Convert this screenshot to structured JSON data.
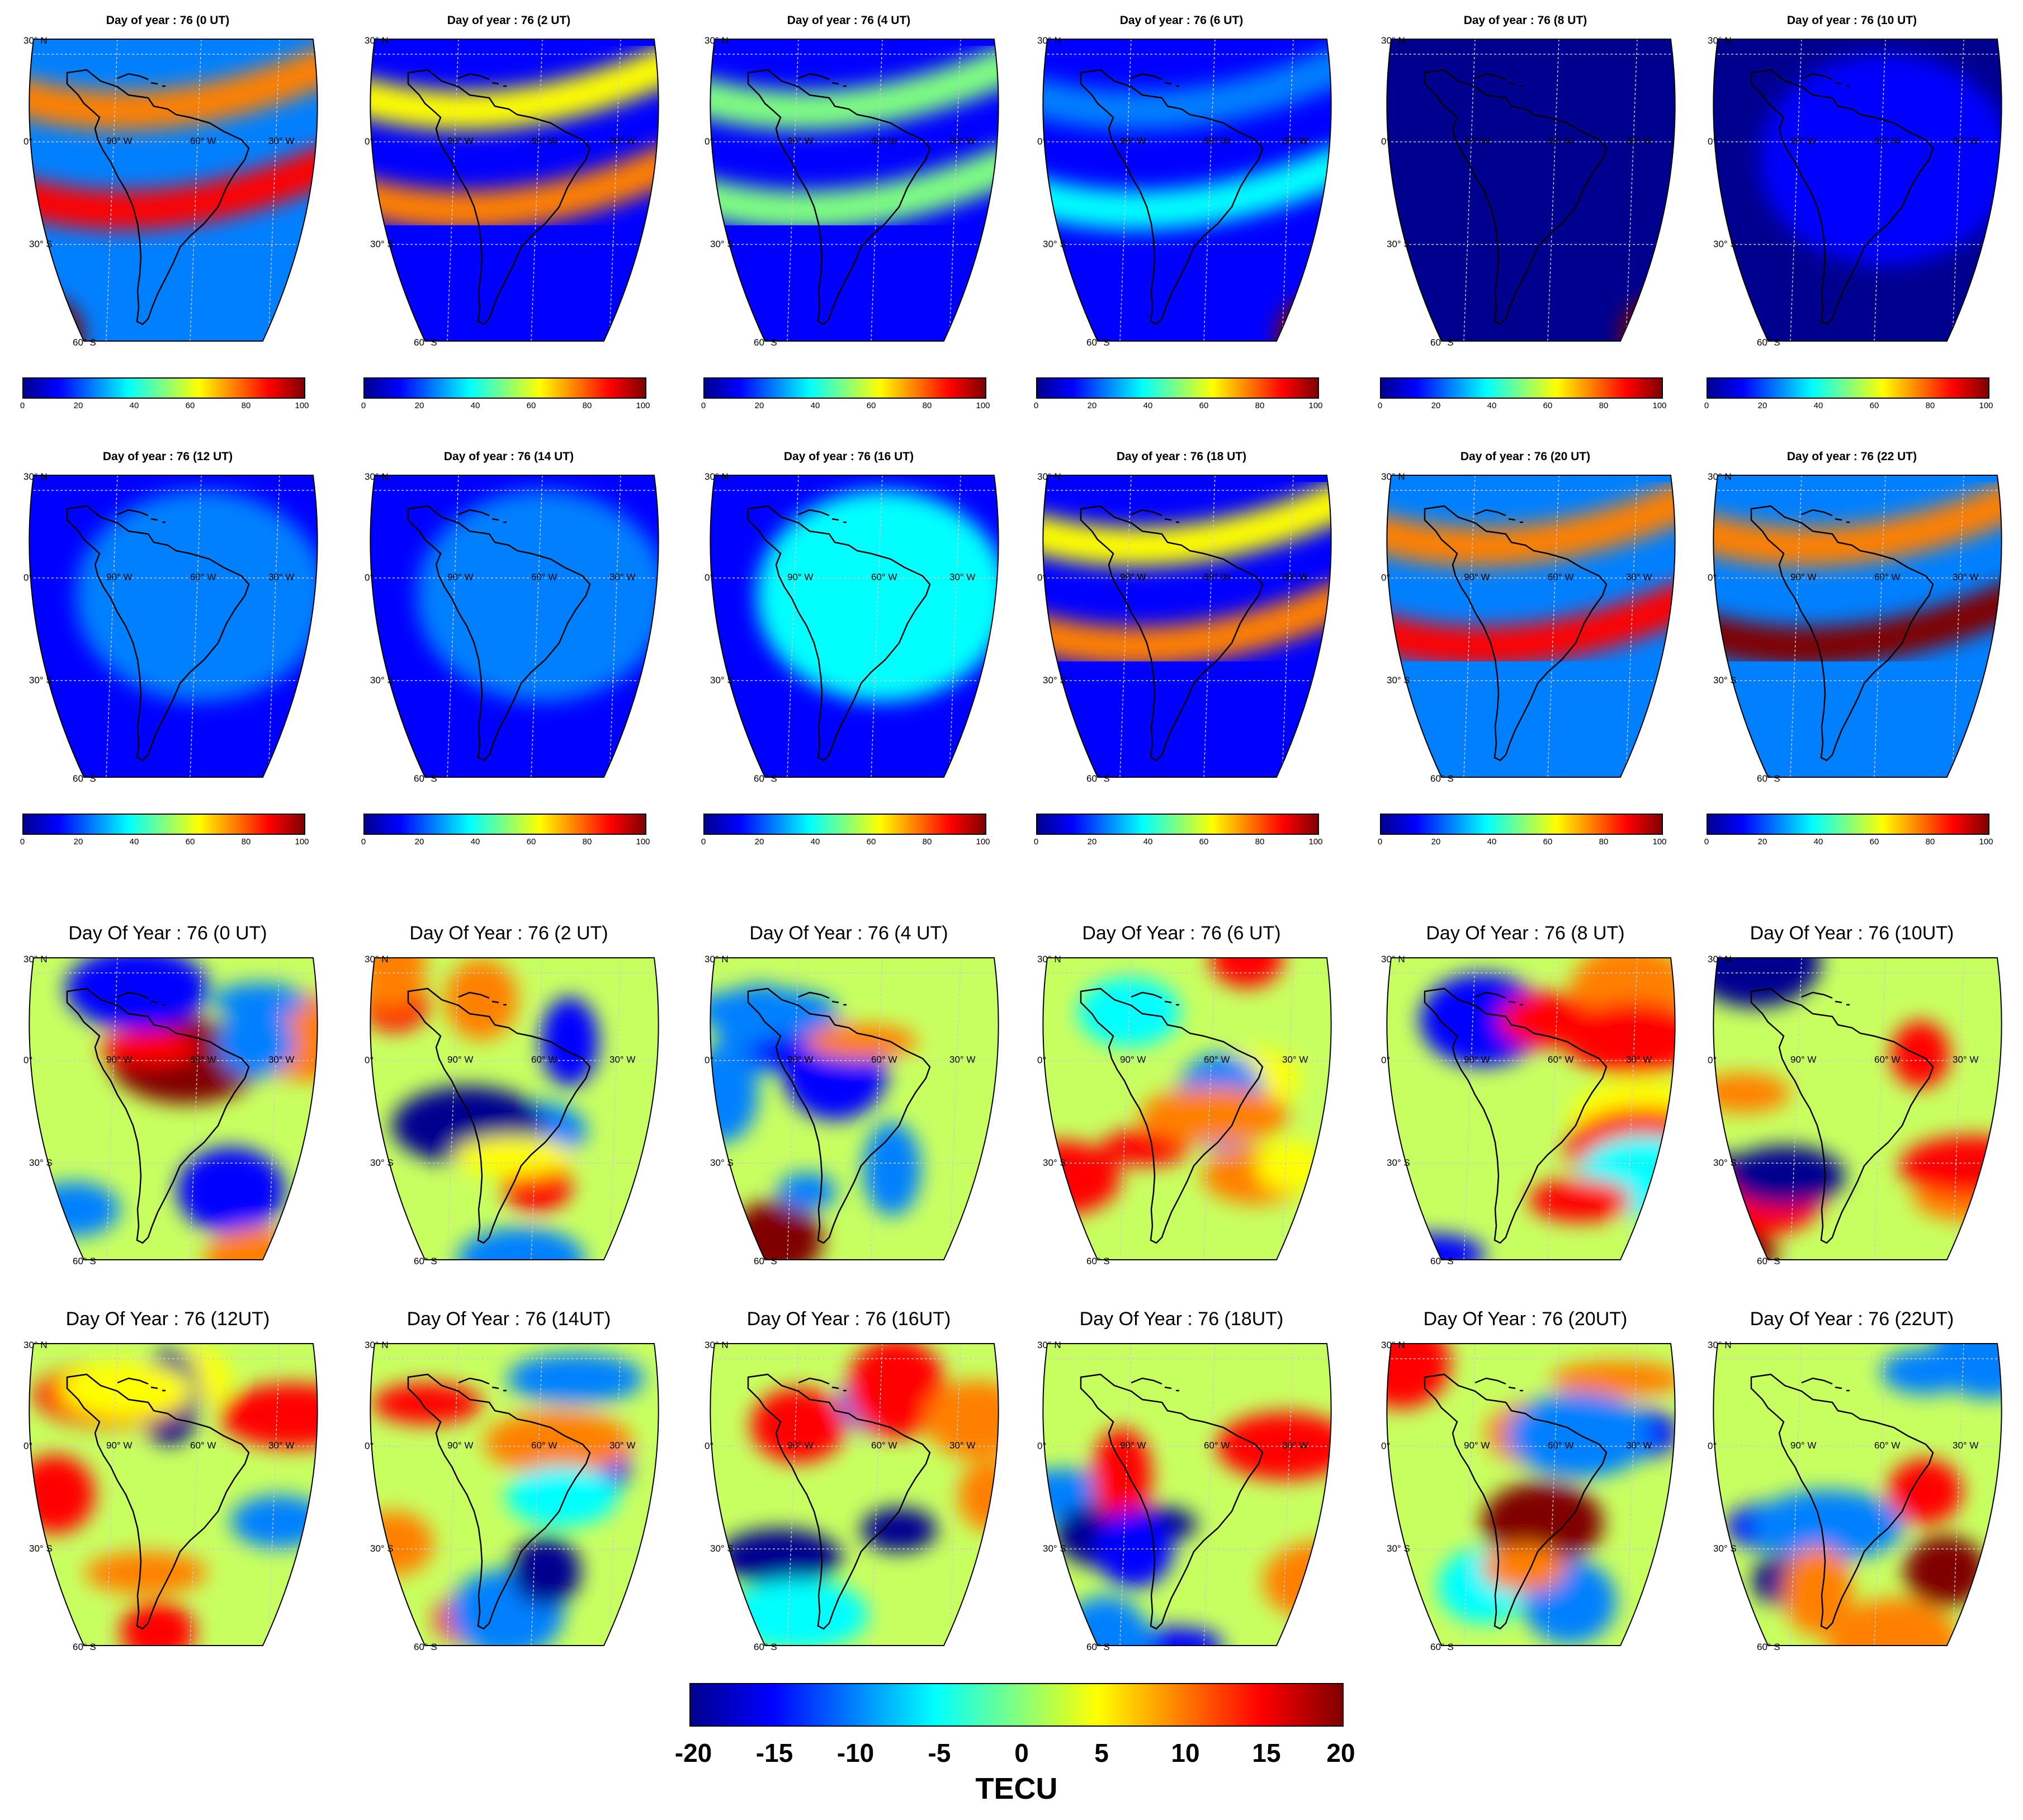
{
  "panels_tec": [
    {
      "title": "Day of year : 76 (0 UT)",
      "pattern": "crest",
      "peak": 0.85,
      "spot": "sw"
    },
    {
      "title": "Day of year : 76 (2 UT)",
      "pattern": "crest",
      "peak": 0.72,
      "spot": ""
    },
    {
      "title": "Day of year : 76 (4 UT)",
      "pattern": "crest",
      "peak": 0.55,
      "spot": ""
    },
    {
      "title": "Day of year : 76 (6 UT)",
      "pattern": "crest",
      "peak": 0.32,
      "spot": "se"
    },
    {
      "title": "Day of year : 76 (8 UT)",
      "pattern": "flat",
      "peak": 0.06,
      "spot": "se"
    },
    {
      "title": "Day of year : 76 (10 UT)",
      "pattern": "flat",
      "peak": 0.12,
      "spot": ""
    },
    {
      "title": "Day of year : 76 (12 UT)",
      "pattern": "flat",
      "peak": 0.25,
      "spot": ""
    },
    {
      "title": "Day of year : 76 (14 UT)",
      "pattern": "flat",
      "peak": 0.38,
      "spot": ""
    },
    {
      "title": "Day of year : 76 (16 UT)",
      "pattern": "flat",
      "peak": 0.58,
      "spot": ""
    },
    {
      "title": "Day of year : 76 (18 UT)",
      "pattern": "crest",
      "peak": 0.72,
      "spot": ""
    },
    {
      "title": "Day of year : 76 (20 UT)",
      "pattern": "crest",
      "peak": 0.9,
      "spot": ""
    },
    {
      "title": "Day of year : 76 (22 UT)",
      "pattern": "crest",
      "peak": 0.95,
      "spot": ""
    }
  ],
  "panels_diff": [
    {
      "title": "Day Of Year : 76 (0 UT)",
      "seed": 1
    },
    {
      "title": "Day Of Year : 76 (2 UT)",
      "seed": 2
    },
    {
      "title": "Day Of Year : 76 (4 UT)",
      "seed": 3
    },
    {
      "title": "Day Of Year : 76 (6 UT)",
      "seed": 4
    },
    {
      "title": "Day Of Year : 76 (8 UT)",
      "seed": 5
    },
    {
      "title": "Day Of Year : 76 (10UT)",
      "seed": 6
    },
    {
      "title": "Day Of Year : 76 (12UT)",
      "seed": 7
    },
    {
      "title": "Day Of Year : 76 (14UT)",
      "seed": 8
    },
    {
      "title": "Day Of Year : 76 (16UT)",
      "seed": 9
    },
    {
      "title": "Day Of Year : 76 (18UT)",
      "seed": 10
    },
    {
      "title": "Day Of Year : 76 (20UT)",
      "seed": 11
    },
    {
      "title": "Day Of Year : 76 (22UT)",
      "seed": 12
    }
  ],
  "map_labels": {
    "lat_30n": "30° N",
    "lat_0": "0°",
    "lat_30s": "30° S",
    "lat_60s": "60° S",
    "lon_90w": "90° W",
    "lon_60w": "60° W",
    "lon_30w": "30° W"
  },
  "small_colorbar_ticks": [
    "0",
    "20",
    "40",
    "60",
    "80",
    "100"
  ],
  "big_colorbar": {
    "ticks": [
      "-20",
      "-15",
      "-10",
      "-5",
      "0",
      "5",
      "10",
      "15",
      "20"
    ],
    "unit": "TECU"
  },
  "colors": {
    "jet_0": "#00008f",
    "jet_1": "#0000ff",
    "jet_2": "#0080ff",
    "jet_3": "#00ffff",
    "jet_4": "#80ff80",
    "jet_5": "#ffff00",
    "jet_6": "#ff8000",
    "jet_7": "#ff0000",
    "jet_8": "#800000"
  }
}
